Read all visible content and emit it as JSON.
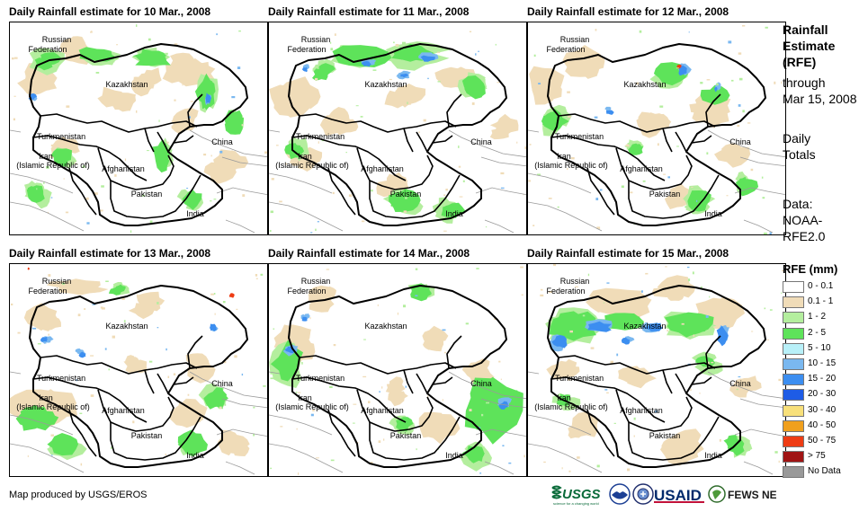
{
  "panels": [
    {
      "title": "Daily Rainfall estimate for 10 Mar., 2008",
      "seed": 11,
      "variant": "a"
    },
    {
      "title": "Daily Rainfall estimate for 11 Mar., 2008",
      "seed": 23,
      "variant": "b"
    },
    {
      "title": "Daily Rainfall estimate for 12 Mar., 2008",
      "seed": 37,
      "variant": "c"
    },
    {
      "title": "Daily Rainfall estimate for 13 Mar., 2008",
      "seed": 41,
      "variant": "d"
    },
    {
      "title": "Daily Rainfall estimate for 14 Mar., 2008",
      "seed": 53,
      "variant": "e"
    },
    {
      "title": "Daily Rainfall estimate for 15 Mar., 2008",
      "seed": 67,
      "variant": "f"
    }
  ],
  "map_labels": {
    "russia_1": "Russian",
    "russia_2": "Federation",
    "kazakhstan": "Kazakhstan",
    "turkmenistan": "Turkmenistan",
    "iran_1": "Iran",
    "iran_2": "(Islamic Republic of)",
    "afghanistan": "Afghanistan",
    "pakistan": "Pakistan",
    "china": "China",
    "india": "India"
  },
  "side": {
    "title_1": "Rainfall",
    "title_2": "Estimate",
    "title_3": "(RFE)",
    "through_1": "through",
    "through_2": "Mar 15, 2008",
    "daily_1": "Daily",
    "daily_2": "Totals",
    "data_1": "Data:",
    "data_2": "NOAA-",
    "data_3": "RFE2.0"
  },
  "legend": {
    "title": "RFE (mm)",
    "items": [
      {
        "label": "0 - 0.1",
        "color": "#ffffff"
      },
      {
        "label": "0.1 - 1",
        "color": "#f0dcb8"
      },
      {
        "label": "1 - 2",
        "color": "#b4ee9e"
      },
      {
        "label": "2 - 5",
        "color": "#5ee35a"
      },
      {
        "label": "5 - 10",
        "color": "#b8f0f8"
      },
      {
        "label": "10 - 15",
        "color": "#7ab8f0"
      },
      {
        "label": "15 - 20",
        "color": "#3c8ef0"
      },
      {
        "label": "20 - 30",
        "color": "#1e5ce6"
      },
      {
        "label": "30 - 40",
        "color": "#f8e07a"
      },
      {
        "label": "40 - 50",
        "color": "#f0a01e"
      },
      {
        "label": "50 - 75",
        "color": "#ee3c14"
      },
      {
        "label": "> 75",
        "color": "#a01414"
      },
      {
        "label": "No Data",
        "color": "#999999"
      }
    ]
  },
  "credit": "Map produced by USGS/EROS",
  "logos": {
    "usgs": "USGS",
    "usgs_tagline": "science for a changing world",
    "usaid": "USAID",
    "fews": "FEWS NET"
  }
}
